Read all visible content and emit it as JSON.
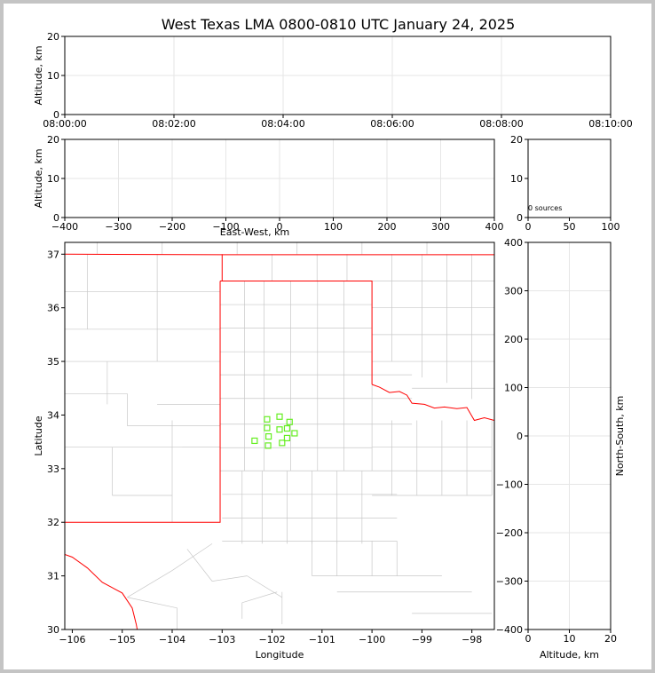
{
  "title": "West Texas LMA 0800-0810 UTC January 24, 2025",
  "colors": {
    "border": "#ff0000",
    "county": "#c8c8c8",
    "source_marker": "#66ee22",
    "grid": "#e6e6e6"
  },
  "chart_data": [
    {
      "panel": "time-altitude",
      "type": "scatter",
      "ylabel": "Altitude, km",
      "xlim": [
        "08:00:00",
        "08:10:00"
      ],
      "x_ticks": [
        "08:00:00",
        "08:02:00",
        "08:04:00",
        "08:06:00",
        "08:08:00",
        "08:10:00"
      ],
      "ylim": [
        0,
        20
      ],
      "y_ticks": [
        0,
        10,
        20
      ],
      "grid": true,
      "points": []
    },
    {
      "panel": "east-west-altitude",
      "type": "scatter",
      "xlabel": "East-West, km",
      "ylabel": "Altitude, km",
      "xlim": [
        -400,
        400
      ],
      "x_ticks": [
        -400,
        -300,
        -200,
        -100,
        0,
        100,
        200,
        300,
        400
      ],
      "ylim": [
        0,
        20
      ],
      "y_ticks": [
        0,
        10,
        20
      ],
      "grid": true,
      "points": []
    },
    {
      "panel": "altitude-histogram",
      "type": "bar",
      "xlim": [
        0,
        100
      ],
      "x_ticks": [
        0,
        50,
        100
      ],
      "ylim": [
        0,
        20
      ],
      "y_ticks": [
        0,
        10,
        20
      ],
      "annotation": "0 sources",
      "values": []
    },
    {
      "panel": "plan-view",
      "type": "scatter",
      "xlabel": "Longitude",
      "ylabel": "Latitude",
      "xlim": [
        -106.15,
        -97.55
      ],
      "x_ticks": [
        -106,
        -105,
        -104,
        -103,
        -102,
        -101,
        -100,
        -99,
        -98
      ],
      "ylim": [
        30,
        37.22
      ],
      "y_ticks": [
        30,
        31,
        32,
        33,
        34,
        35,
        36,
        37
      ],
      "grid": false,
      "points": [
        {
          "lon": -102.35,
          "lat": 33.52
        },
        {
          "lon": -102.1,
          "lat": 33.92
        },
        {
          "lon": -101.85,
          "lat": 33.97
        },
        {
          "lon": -102.1,
          "lat": 33.76
        },
        {
          "lon": -101.65,
          "lat": 33.87
        },
        {
          "lon": -101.85,
          "lat": 33.73
        },
        {
          "lon": -101.7,
          "lat": 33.75
        },
        {
          "lon": -102.07,
          "lat": 33.6
        },
        {
          "lon": -101.55,
          "lat": 33.66
        },
        {
          "lon": -101.7,
          "lat": 33.57
        },
        {
          "lon": -101.8,
          "lat": 33.48
        },
        {
          "lon": -102.08,
          "lat": 33.43
        }
      ]
    },
    {
      "panel": "north-south-altitude",
      "type": "scatter",
      "xlabel": "Altitude, km",
      "ylabel": "North-South, km",
      "xlim": [
        0,
        20
      ],
      "x_ticks": [
        0,
        10,
        20
      ],
      "ylim": [
        -400,
        400
      ],
      "y_ticks": [
        -400,
        -300,
        -200,
        -100,
        0,
        100,
        200,
        300,
        400
      ],
      "grid": true,
      "points": []
    }
  ]
}
